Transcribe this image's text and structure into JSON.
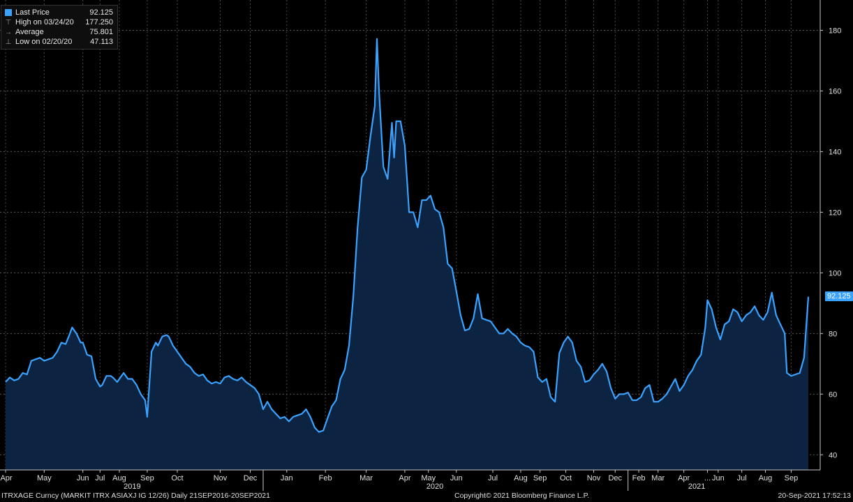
{
  "legend": [
    {
      "marker": "square",
      "label": "Last Price",
      "value": "92.125"
    },
    {
      "marker": "high",
      "label": "High on 03/24/20",
      "value": "177.250"
    },
    {
      "marker": "avg",
      "label": "Average",
      "value": "75.801"
    },
    {
      "marker": "low",
      "label": "Low on 02/20/20",
      "value": "47.113"
    }
  ],
  "last_badge": "92.125",
  "footer": {
    "left": "ITRXAGE Curncy (MARKIT ITRX ASIAXJ IG 12/26)  Daily 21SEP2016-20SEP2021",
    "center": "Copyright© 2021 Bloomberg Finance L.P.",
    "right": "20-Sep-2021 17:52:13"
  },
  "chart_data": {
    "type": "area",
    "title": "",
    "xlabel": "",
    "ylabel": "",
    "series_name": "Last Price",
    "line_color": "#3aa2ff",
    "fill_color": "#0c2442",
    "ylim": [
      35,
      190
    ],
    "yticks": [
      40,
      60,
      80,
      100,
      120,
      140,
      160,
      180
    ],
    "grid": true,
    "x_tick_labels": [
      "Apr",
      "May",
      "Jun",
      "Jul",
      "Aug",
      "Sep",
      "Oct",
      "Nov",
      "Dec",
      "Jan",
      "Feb",
      "Mar",
      "Apr",
      "May",
      "Jun",
      "Jul",
      "Aug",
      "Sep",
      "Oct",
      "Nov",
      "Dec",
      "Feb",
      "Mar",
      "Apr",
      "...",
      "Jun",
      "Jul",
      "Aug",
      "Sep"
    ],
    "x_tick_pos": [
      0,
      1.8,
      3.6,
      4.4,
      5.3,
      6.6,
      8.0,
      10.0,
      11.4,
      13.1,
      14.9,
      16.8,
      18.6,
      19.7,
      21.0,
      22.7,
      24.0,
      24.9,
      26.1,
      27.4,
      28.4,
      29.5,
      30.4,
      31.6,
      32.7,
      33.2,
      34.3,
      35.4,
      36.6
    ],
    "year_labels": [
      {
        "label": "2019",
        "pos": 5.9
      },
      {
        "label": "2020",
        "pos": 20.0
      },
      {
        "label": "2021",
        "pos": 32.2
      }
    ],
    "year_separators": [
      12.0,
      29.0
    ],
    "points": [
      [
        0.0,
        64
      ],
      [
        0.2,
        65.5
      ],
      [
        0.4,
        64.5
      ],
      [
        0.6,
        65
      ],
      [
        0.8,
        67
      ],
      [
        1.0,
        66.5
      ],
      [
        1.2,
        71
      ],
      [
        1.4,
        71.5
      ],
      [
        1.6,
        72
      ],
      [
        1.8,
        71
      ],
      [
        2.0,
        71.5
      ],
      [
        2.2,
        72
      ],
      [
        2.4,
        74
      ],
      [
        2.6,
        77
      ],
      [
        2.8,
        76.5
      ],
      [
        3.0,
        80
      ],
      [
        3.1,
        82
      ],
      [
        3.3,
        80
      ],
      [
        3.5,
        77
      ],
      [
        3.6,
        77
      ],
      [
        3.8,
        73
      ],
      [
        4.0,
        72.5
      ],
      [
        4.2,
        65
      ],
      [
        4.4,
        62.5
      ],
      [
        4.5,
        63
      ],
      [
        4.7,
        66
      ],
      [
        4.9,
        66
      ],
      [
        5.0,
        65.5
      ],
      [
        5.2,
        64
      ],
      [
        5.4,
        66
      ],
      [
        5.5,
        67
      ],
      [
        5.7,
        65
      ],
      [
        5.9,
        65
      ],
      [
        6.1,
        63
      ],
      [
        6.3,
        60
      ],
      [
        6.5,
        58
      ],
      [
        6.6,
        52.5
      ],
      [
        6.8,
        74
      ],
      [
        7.0,
        77
      ],
      [
        7.1,
        76
      ],
      [
        7.3,
        79
      ],
      [
        7.5,
        79.5
      ],
      [
        7.6,
        79
      ],
      [
        7.8,
        76
      ],
      [
        8.0,
        74
      ],
      [
        8.2,
        72
      ],
      [
        8.4,
        70
      ],
      [
        8.6,
        69
      ],
      [
        8.8,
        67
      ],
      [
        9.0,
        66
      ],
      [
        9.2,
        66.5
      ],
      [
        9.4,
        64.5
      ],
      [
        9.6,
        63.5
      ],
      [
        9.8,
        64
      ],
      [
        10.0,
        63.5
      ],
      [
        10.2,
        65.5
      ],
      [
        10.4,
        66
      ],
      [
        10.6,
        65
      ],
      [
        10.8,
        64.5
      ],
      [
        11.0,
        65.5
      ],
      [
        11.2,
        64
      ],
      [
        11.4,
        63
      ],
      [
        11.6,
        62
      ],
      [
        11.8,
        60
      ],
      [
        12.0,
        55
      ],
      [
        12.2,
        57.5
      ],
      [
        12.4,
        55
      ],
      [
        12.6,
        53.5
      ],
      [
        12.8,
        52
      ],
      [
        13.0,
        52.5
      ],
      [
        13.2,
        51
      ],
      [
        13.4,
        52.5
      ],
      [
        13.6,
        53
      ],
      [
        13.8,
        53.5
      ],
      [
        14.0,
        55
      ],
      [
        14.2,
        52.5
      ],
      [
        14.4,
        49
      ],
      [
        14.6,
        47.5
      ],
      [
        14.8,
        48
      ],
      [
        15.0,
        52
      ],
      [
        15.2,
        56
      ],
      [
        15.4,
        58
      ],
      [
        15.6,
        65
      ],
      [
        15.8,
        68
      ],
      [
        16.0,
        76
      ],
      [
        16.2,
        92
      ],
      [
        16.4,
        115
      ],
      [
        16.6,
        131.5
      ],
      [
        16.8,
        134
      ],
      [
        17.0,
        145
      ],
      [
        17.2,
        155
      ],
      [
        17.3,
        177.2
      ],
      [
        17.4,
        160
      ],
      [
        17.6,
        135
      ],
      [
        17.8,
        131
      ],
      [
        18.0,
        149.5
      ],
      [
        18.1,
        138
      ],
      [
        18.2,
        150
      ],
      [
        18.4,
        150
      ],
      [
        18.6,
        142
      ],
      [
        18.8,
        120
      ],
      [
        19.0,
        120
      ],
      [
        19.2,
        115
      ],
      [
        19.4,
        124
      ],
      [
        19.6,
        124
      ],
      [
        19.8,
        125.5
      ],
      [
        20.0,
        121
      ],
      [
        20.2,
        120
      ],
      [
        20.4,
        115
      ],
      [
        20.6,
        103
      ],
      [
        20.8,
        101.5
      ],
      [
        21.0,
        94
      ],
      [
        21.2,
        86
      ],
      [
        21.4,
        81
      ],
      [
        21.6,
        81.5
      ],
      [
        21.8,
        85
      ],
      [
        22.0,
        93
      ],
      [
        22.2,
        85
      ],
      [
        22.4,
        84.5
      ],
      [
        22.6,
        84
      ],
      [
        22.8,
        82
      ],
      [
        23.0,
        80
      ],
      [
        23.2,
        80
      ],
      [
        23.4,
        81.5
      ],
      [
        23.6,
        80
      ],
      [
        23.8,
        79
      ],
      [
        24.0,
        77
      ],
      [
        24.2,
        76
      ],
      [
        24.4,
        75.5
      ],
      [
        24.6,
        74
      ],
      [
        24.8,
        65.5
      ],
      [
        25.0,
        64
      ],
      [
        25.2,
        65
      ],
      [
        25.4,
        59
      ],
      [
        25.6,
        57.5
      ],
      [
        25.8,
        73.5
      ],
      [
        26.0,
        77
      ],
      [
        26.2,
        79
      ],
      [
        26.4,
        77
      ],
      [
        26.6,
        71
      ],
      [
        26.8,
        69
      ],
      [
        27.0,
        64
      ],
      [
        27.2,
        64.5
      ],
      [
        27.4,
        66.5
      ],
      [
        27.6,
        68
      ],
      [
        27.8,
        70
      ],
      [
        28.0,
        67.5
      ],
      [
        28.2,
        62
      ],
      [
        28.4,
        58.5
      ],
      [
        28.6,
        60
      ],
      [
        28.8,
        60
      ],
      [
        29.0,
        60.5
      ],
      [
        29.2,
        58
      ],
      [
        29.4,
        58
      ],
      [
        29.6,
        59
      ],
      [
        29.8,
        62
      ],
      [
        30.0,
        63
      ],
      [
        30.2,
        57.5
      ],
      [
        30.4,
        57.5
      ],
      [
        30.6,
        58.5
      ],
      [
        30.8,
        60
      ],
      [
        31.0,
        62.5
      ],
      [
        31.2,
        65
      ],
      [
        31.4,
        61
      ],
      [
        31.6,
        63
      ],
      [
        31.8,
        66
      ],
      [
        32.0,
        68
      ],
      [
        32.2,
        71
      ],
      [
        32.4,
        73
      ],
      [
        32.6,
        82
      ],
      [
        32.7,
        91
      ],
      [
        32.9,
        88
      ],
      [
        33.1,
        82
      ],
      [
        33.3,
        78
      ],
      [
        33.5,
        83
      ],
      [
        33.7,
        84
      ],
      [
        33.9,
        88
      ],
      [
        34.1,
        87
      ],
      [
        34.3,
        84
      ],
      [
        34.5,
        86
      ],
      [
        34.7,
        87
      ],
      [
        34.9,
        89
      ],
      [
        35.1,
        86
      ],
      [
        35.3,
        84.5
      ],
      [
        35.5,
        87
      ],
      [
        35.7,
        93.5
      ],
      [
        35.9,
        86
      ],
      [
        36.1,
        83
      ],
      [
        36.3,
        80
      ],
      [
        36.4,
        67
      ],
      [
        36.6,
        66
      ],
      [
        36.8,
        66.5
      ],
      [
        37.0,
        67
      ],
      [
        37.2,
        72
      ],
      [
        37.4,
        92.125
      ]
    ],
    "x_domain": [
      0,
      37.4
    ]
  }
}
